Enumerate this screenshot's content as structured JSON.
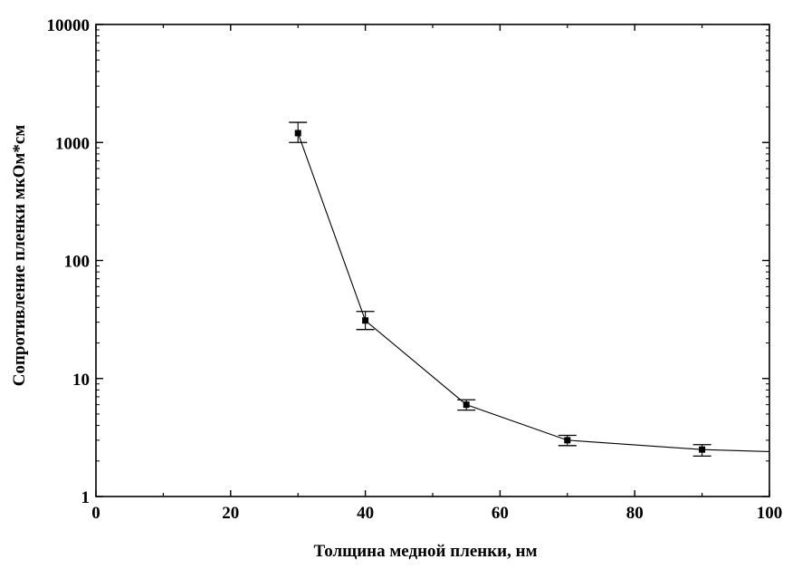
{
  "chart_data": {
    "type": "line",
    "title": "",
    "xlabel": "Толщина медной пленки, нм",
    "ylabel": "Сопротивление пленки мкОм*см",
    "xlim": [
      0,
      100
    ],
    "ylim": [
      1,
      10000
    ],
    "yscale": "log",
    "grid": false,
    "x_ticks": [
      0,
      20,
      40,
      60,
      80,
      100
    ],
    "x_tick_labels": [
      "0",
      "20",
      "40",
      "60",
      "80",
      "100"
    ],
    "y_ticks": [
      1,
      10,
      100,
      1000,
      10000
    ],
    "y_tick_labels": [
      "1",
      "10",
      "100",
      "1000",
      "10000"
    ],
    "series": [
      {
        "x": [
          30,
          40,
          55,
          70,
          90
        ],
        "y": [
          1200,
          31,
          6.0,
          3.0,
          2.5
        ],
        "y_err_low": [
          1000,
          26,
          5.4,
          2.7,
          2.2
        ],
        "y_err_high": [
          1480,
          37,
          6.6,
          3.3,
          2.75
        ],
        "line_extension": {
          "x": 100,
          "y": 2.4
        },
        "color": "#000000"
      }
    ]
  }
}
